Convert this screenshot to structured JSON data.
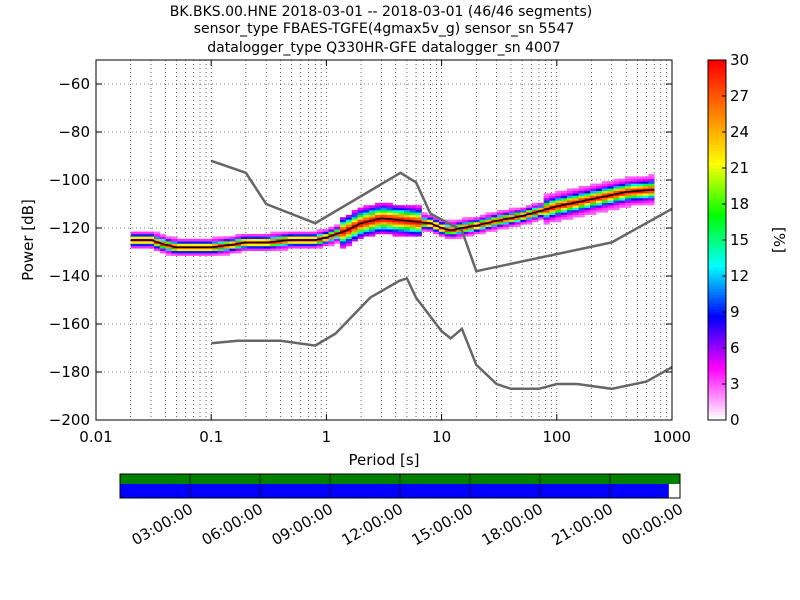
{
  "title": {
    "line1": "BK.BKS.00.HNE   2018-03-01 -- 2018-03-01  (46/46 segments)",
    "line2": "sensor_type FBAES-TGFE(4gmax5v_g) sensor_sn 5547",
    "line3": "datalogger_type Q330HR-GFE datalogger_sn 4007"
  },
  "chart_data": {
    "type": "heatmap",
    "xlabel": "Period [s]",
    "ylabel": "Power [dB]",
    "xscale": "log",
    "xlim": [
      0.01,
      1000
    ],
    "ylim": [
      -200,
      -50
    ],
    "xticks": [
      {
        "value": 0.01,
        "label": "0.01"
      },
      {
        "value": 0.1,
        "label": "0.1"
      },
      {
        "value": 1,
        "label": "1"
      },
      {
        "value": 10,
        "label": "10"
      },
      {
        "value": 100,
        "label": "100"
      },
      {
        "value": 1000,
        "label": "1000"
      }
    ],
    "yticks": [
      {
        "value": -60,
        "label": "−60"
      },
      {
        "value": -80,
        "label": "−80"
      },
      {
        "value": -100,
        "label": "−100"
      },
      {
        "value": -120,
        "label": "−120"
      },
      {
        "value": -140,
        "label": "−140"
      },
      {
        "value": -160,
        "label": "−160"
      },
      {
        "value": -180,
        "label": "−180"
      },
      {
        "value": -200,
        "label": "−200"
      }
    ],
    "grid": true,
    "noise_models": [
      {
        "name": "",
        "x": [
          0.1,
          0.2,
          0.3,
          0.8,
          4.4,
          6,
          8,
          15,
          20,
          300,
          1000
        ],
        "y": [
          -92,
          -97,
          -110,
          -118,
          -97,
          -101,
          -114,
          -121,
          -138,
          -126,
          -112
        ]
      },
      {
        "name": "",
        "x": [
          0.1,
          0.17,
          0.4,
          0.8,
          1.2,
          2.4,
          4.3,
          5,
          6,
          10,
          12,
          15,
          20,
          30,
          40,
          70,
          100,
          150,
          300,
          600,
          1000
        ],
        "y": [
          -168,
          -167,
          -167,
          -169,
          -164,
          -149,
          -142,
          -141,
          -149,
          -163,
          -166,
          -162,
          -177,
          -185,
          -187,
          -187,
          -185,
          -185,
          -187,
          -184,
          -178
        ]
      }
    ],
    "ppsd_mode": {
      "x": [
        0.02,
        0.025,
        0.03,
        0.04,
        0.05,
        0.07,
        0.1,
        0.15,
        0.2,
        0.3,
        0.5,
        0.8,
        1,
        1.5,
        2,
        3,
        5,
        8,
        10,
        12,
        15,
        20,
        30,
        50,
        100,
        200,
        400,
        700
      ],
      "y": [
        -125,
        -125,
        -125,
        -127,
        -128,
        -128,
        -128,
        -127,
        -126,
        -126,
        -125,
        -125,
        -124,
        -121,
        -118,
        -116,
        -117,
        -118,
        -120,
        -121,
        -120,
        -119,
        -117,
        -115,
        -111,
        -108,
        -105,
        -104
      ]
    },
    "colorbar": {
      "label": "[%]",
      "min": 0,
      "max": 30,
      "ticks": [
        "0",
        "3",
        "6",
        "9",
        "12",
        "15",
        "18",
        "21",
        "24",
        "27",
        "30"
      ],
      "colormap": [
        "#ffffff",
        "#ff00ff",
        "#0000ff",
        "#00ffff",
        "#00ff00",
        "#ffff00",
        "#ff7f00",
        "#ff0000"
      ]
    },
    "coverage": {
      "time_ticks": [
        "03:00:00",
        "06:00:00",
        "09:00:00",
        "12:00:00",
        "15:00:00",
        "18:00:00",
        "21:00:00",
        "00:00:00"
      ],
      "bars": [
        {
          "color": "#008000",
          "fraction": 1.0
        },
        {
          "color": "#0000ff",
          "fraction": 0.98
        }
      ]
    }
  }
}
